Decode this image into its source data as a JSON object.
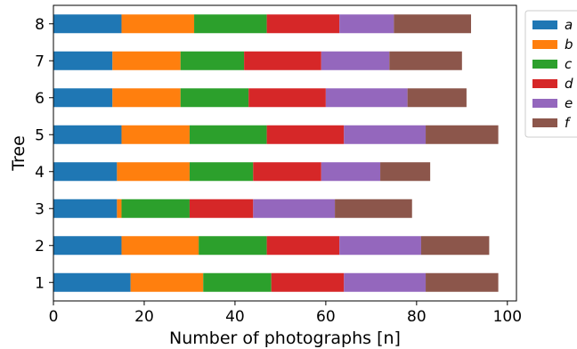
{
  "chart_data": {
    "type": "bar",
    "orientation": "horizontal",
    "stacked": true,
    "categories": [
      "1",
      "2",
      "3",
      "4",
      "5",
      "6",
      "7",
      "8"
    ],
    "series": [
      {
        "name": "a",
        "color": "#1f77b4",
        "values": [
          17,
          15,
          14,
          14,
          15,
          13,
          13,
          15
        ]
      },
      {
        "name": "b",
        "color": "#ff7f0e",
        "values": [
          16,
          17,
          1,
          16,
          15,
          15,
          15,
          16
        ]
      },
      {
        "name": "c",
        "color": "#2ca02c",
        "values": [
          15,
          15,
          15,
          14,
          17,
          15,
          14,
          16
        ]
      },
      {
        "name": "d",
        "color": "#d62728",
        "values": [
          16,
          16,
          14,
          15,
          17,
          17,
          17,
          16
        ]
      },
      {
        "name": "e",
        "color": "#9467bd",
        "values": [
          18,
          18,
          18,
          13,
          18,
          18,
          15,
          12
        ]
      },
      {
        "name": "f",
        "color": "#8c564b",
        "values": [
          16,
          15,
          17,
          11,
          16,
          13,
          16,
          17
        ]
      }
    ],
    "xlabel": "Number of photographs [n]",
    "ylabel": "Tree",
    "xlim": [
      0,
      102
    ],
    "xticks": [
      0,
      20,
      40,
      60,
      80,
      100
    ],
    "grid": false,
    "legend_position": "right"
  }
}
